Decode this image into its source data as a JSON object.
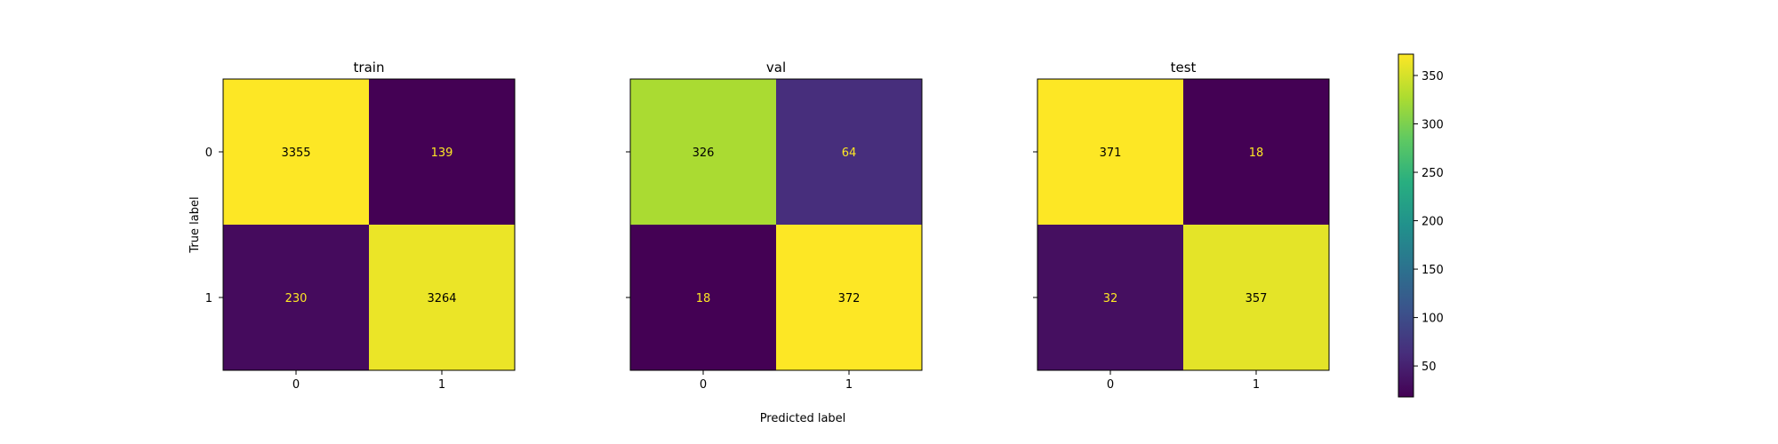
{
  "figure": {
    "xlabel": "Predicted label",
    "ylabel": "True label"
  },
  "colorbar": {
    "colormap": "viridis",
    "ticks": [
      "50",
      "100",
      "150",
      "200",
      "250",
      "300",
      "350"
    ]
  },
  "chart_data": [
    {
      "type": "heatmap",
      "title": "train",
      "x_categories": [
        "0",
        "1"
      ],
      "y_categories": [
        "0",
        "1"
      ],
      "values": [
        [
          3355,
          139
        ],
        [
          230,
          3264
        ]
      ],
      "xlabel": "",
      "ylabel": "True label"
    },
    {
      "type": "heatmap",
      "title": "val",
      "x_categories": [
        "0",
        "1"
      ],
      "y_categories": [
        "0",
        "1"
      ],
      "values": [
        [
          326,
          64
        ],
        [
          18,
          372
        ]
      ],
      "xlabel": "Predicted label",
      "ylabel": ""
    },
    {
      "type": "heatmap",
      "title": "test",
      "x_categories": [
        "0",
        "1"
      ],
      "y_categories": [
        "0",
        "1"
      ],
      "values": [
        [
          371,
          18
        ],
        [
          32,
          357
        ]
      ],
      "xlabel": "",
      "ylabel": ""
    }
  ]
}
